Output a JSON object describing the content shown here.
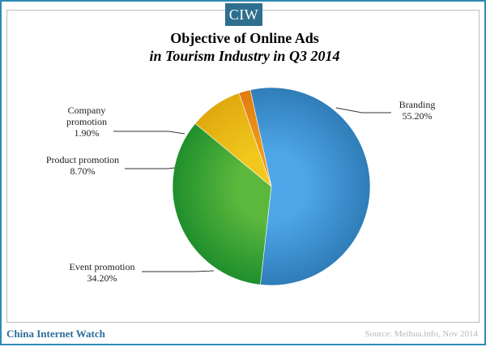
{
  "header": {
    "logo_text": "CIW"
  },
  "chart_data": {
    "type": "pie",
    "title": "Objective of Online Ads",
    "subtitle": "in Tourism Industry in Q3 2014",
    "slices": [
      {
        "label": "Branding",
        "value": 55.2,
        "value_label": "55.20%",
        "color": "#4ea6e8"
      },
      {
        "label": "Event promotion",
        "value": 34.2,
        "value_label": "34.20%",
        "color": "#5cb83d"
      },
      {
        "label": "Product promotion",
        "value": 8.7,
        "value_label": "8.70%",
        "color": "#f2c81e"
      },
      {
        "label": "Company promotion",
        "value": 1.9,
        "value_label": "1.90%",
        "color": "#f09a1c"
      }
    ]
  },
  "footer": {
    "brand": "China Internet Watch",
    "source": "Source: Meihua.info, Nov 2014"
  }
}
